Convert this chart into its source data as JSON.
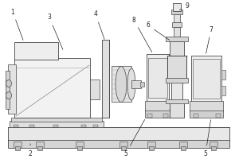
{
  "bg_color": "#ffffff",
  "lc": "#444444",
  "figsize": [
    3.0,
    2.0
  ],
  "dpi": 100,
  "xlim": [
    0,
    300
  ],
  "ylim": [
    0,
    200
  ]
}
